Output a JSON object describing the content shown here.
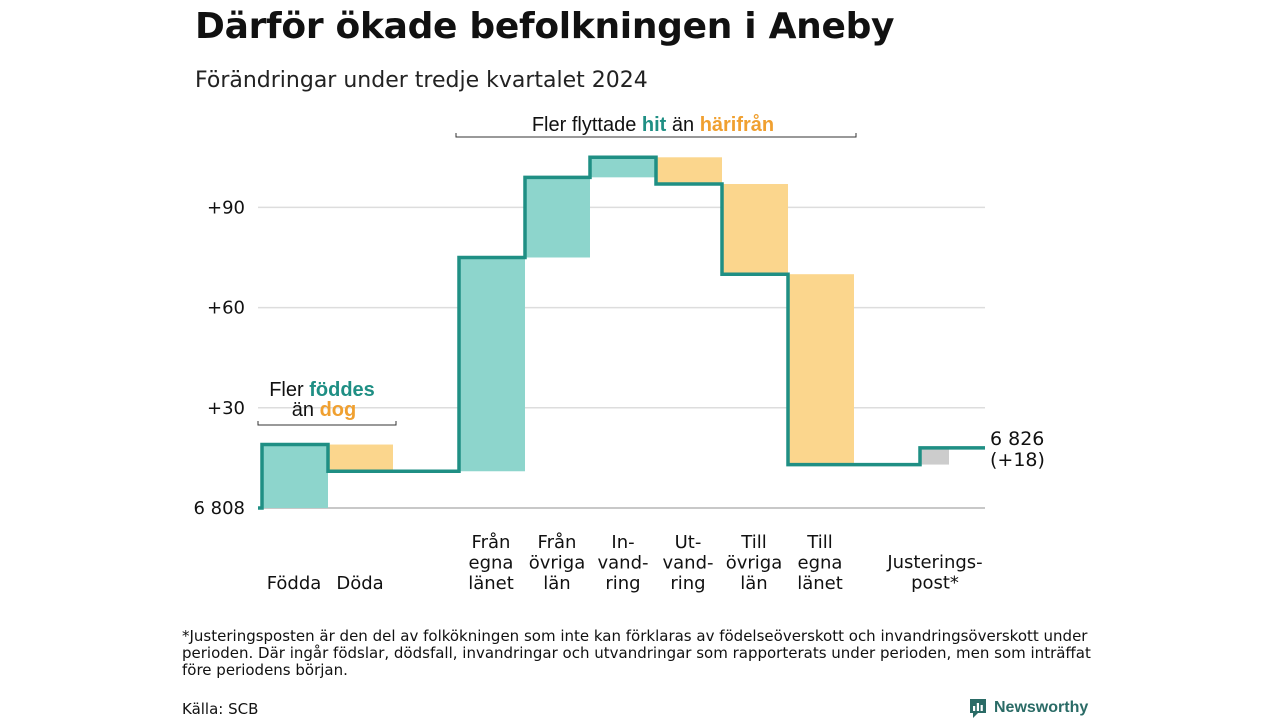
{
  "title": "Därför ökade befolkningen i Aneby",
  "subtitle": "Förändringar under tredje kvartalet 2024",
  "annotations": {
    "migration": {
      "prefix": "Fler flyttade ",
      "hit": "hit",
      "middle": " än ",
      "harifran": "härifrån"
    },
    "births": {
      "line1_prefix": "Fler ",
      "line1_highlight": "föddes",
      "line2_prefix": "än ",
      "line2_highlight": "dog"
    }
  },
  "end_label": {
    "line1": "6 826",
    "line2": "(+18)"
  },
  "footnote": "*Justeringsposten är den del av folkökningen som inte kan förklaras av födelseöverskott och invandringsöverskott under perioden. Där ingår födslar, dödsfall, invandringar och utvandringar som rapporterats under perioden, men som inträffat före periodens början.",
  "source": "Källa: SCB",
  "brand": "Newsworthy",
  "colors": {
    "increase": "#8dd5cc",
    "decrease": "#fbd68d",
    "adjustment": "#cccccc",
    "line": "#1f8f84",
    "hit": "#1f8f84",
    "harifran": "#f0a030",
    "grid": "#dddddd"
  },
  "chart_data": {
    "type": "waterfall",
    "base_value": 6808,
    "end_value": 6826,
    "net_change": 18,
    "y_tick_labels": [
      "6 808",
      "+30",
      "+60",
      "+90"
    ],
    "y_ticks": [
      0,
      30,
      60,
      90
    ],
    "ylim": [
      0,
      107
    ],
    "steps": [
      {
        "label": [
          "Födda"
        ],
        "change": 19,
        "kind": "increase"
      },
      {
        "label": [
          "Döda"
        ],
        "change": -8,
        "kind": "decrease"
      },
      {
        "label": [
          "Från",
          "egna",
          "länet"
        ],
        "change": 64,
        "kind": "increase"
      },
      {
        "label": [
          "Från",
          "övriga",
          "län"
        ],
        "change": 24,
        "kind": "increase"
      },
      {
        "label": [
          "In-",
          "vand-",
          "ring"
        ],
        "change": 6,
        "kind": "increase"
      },
      {
        "label": [
          "Ut-",
          "vand-",
          "ring"
        ],
        "change": -8,
        "kind": "decrease"
      },
      {
        "label": [
          "Till",
          "övriga",
          "län"
        ],
        "change": -27,
        "kind": "decrease"
      },
      {
        "label": [
          "Till",
          "egna",
          "länet"
        ],
        "change": -57,
        "kind": "decrease"
      },
      {
        "label": [
          "Justerings-",
          "post*"
        ],
        "change": 5,
        "kind": "adjustment"
      }
    ]
  }
}
